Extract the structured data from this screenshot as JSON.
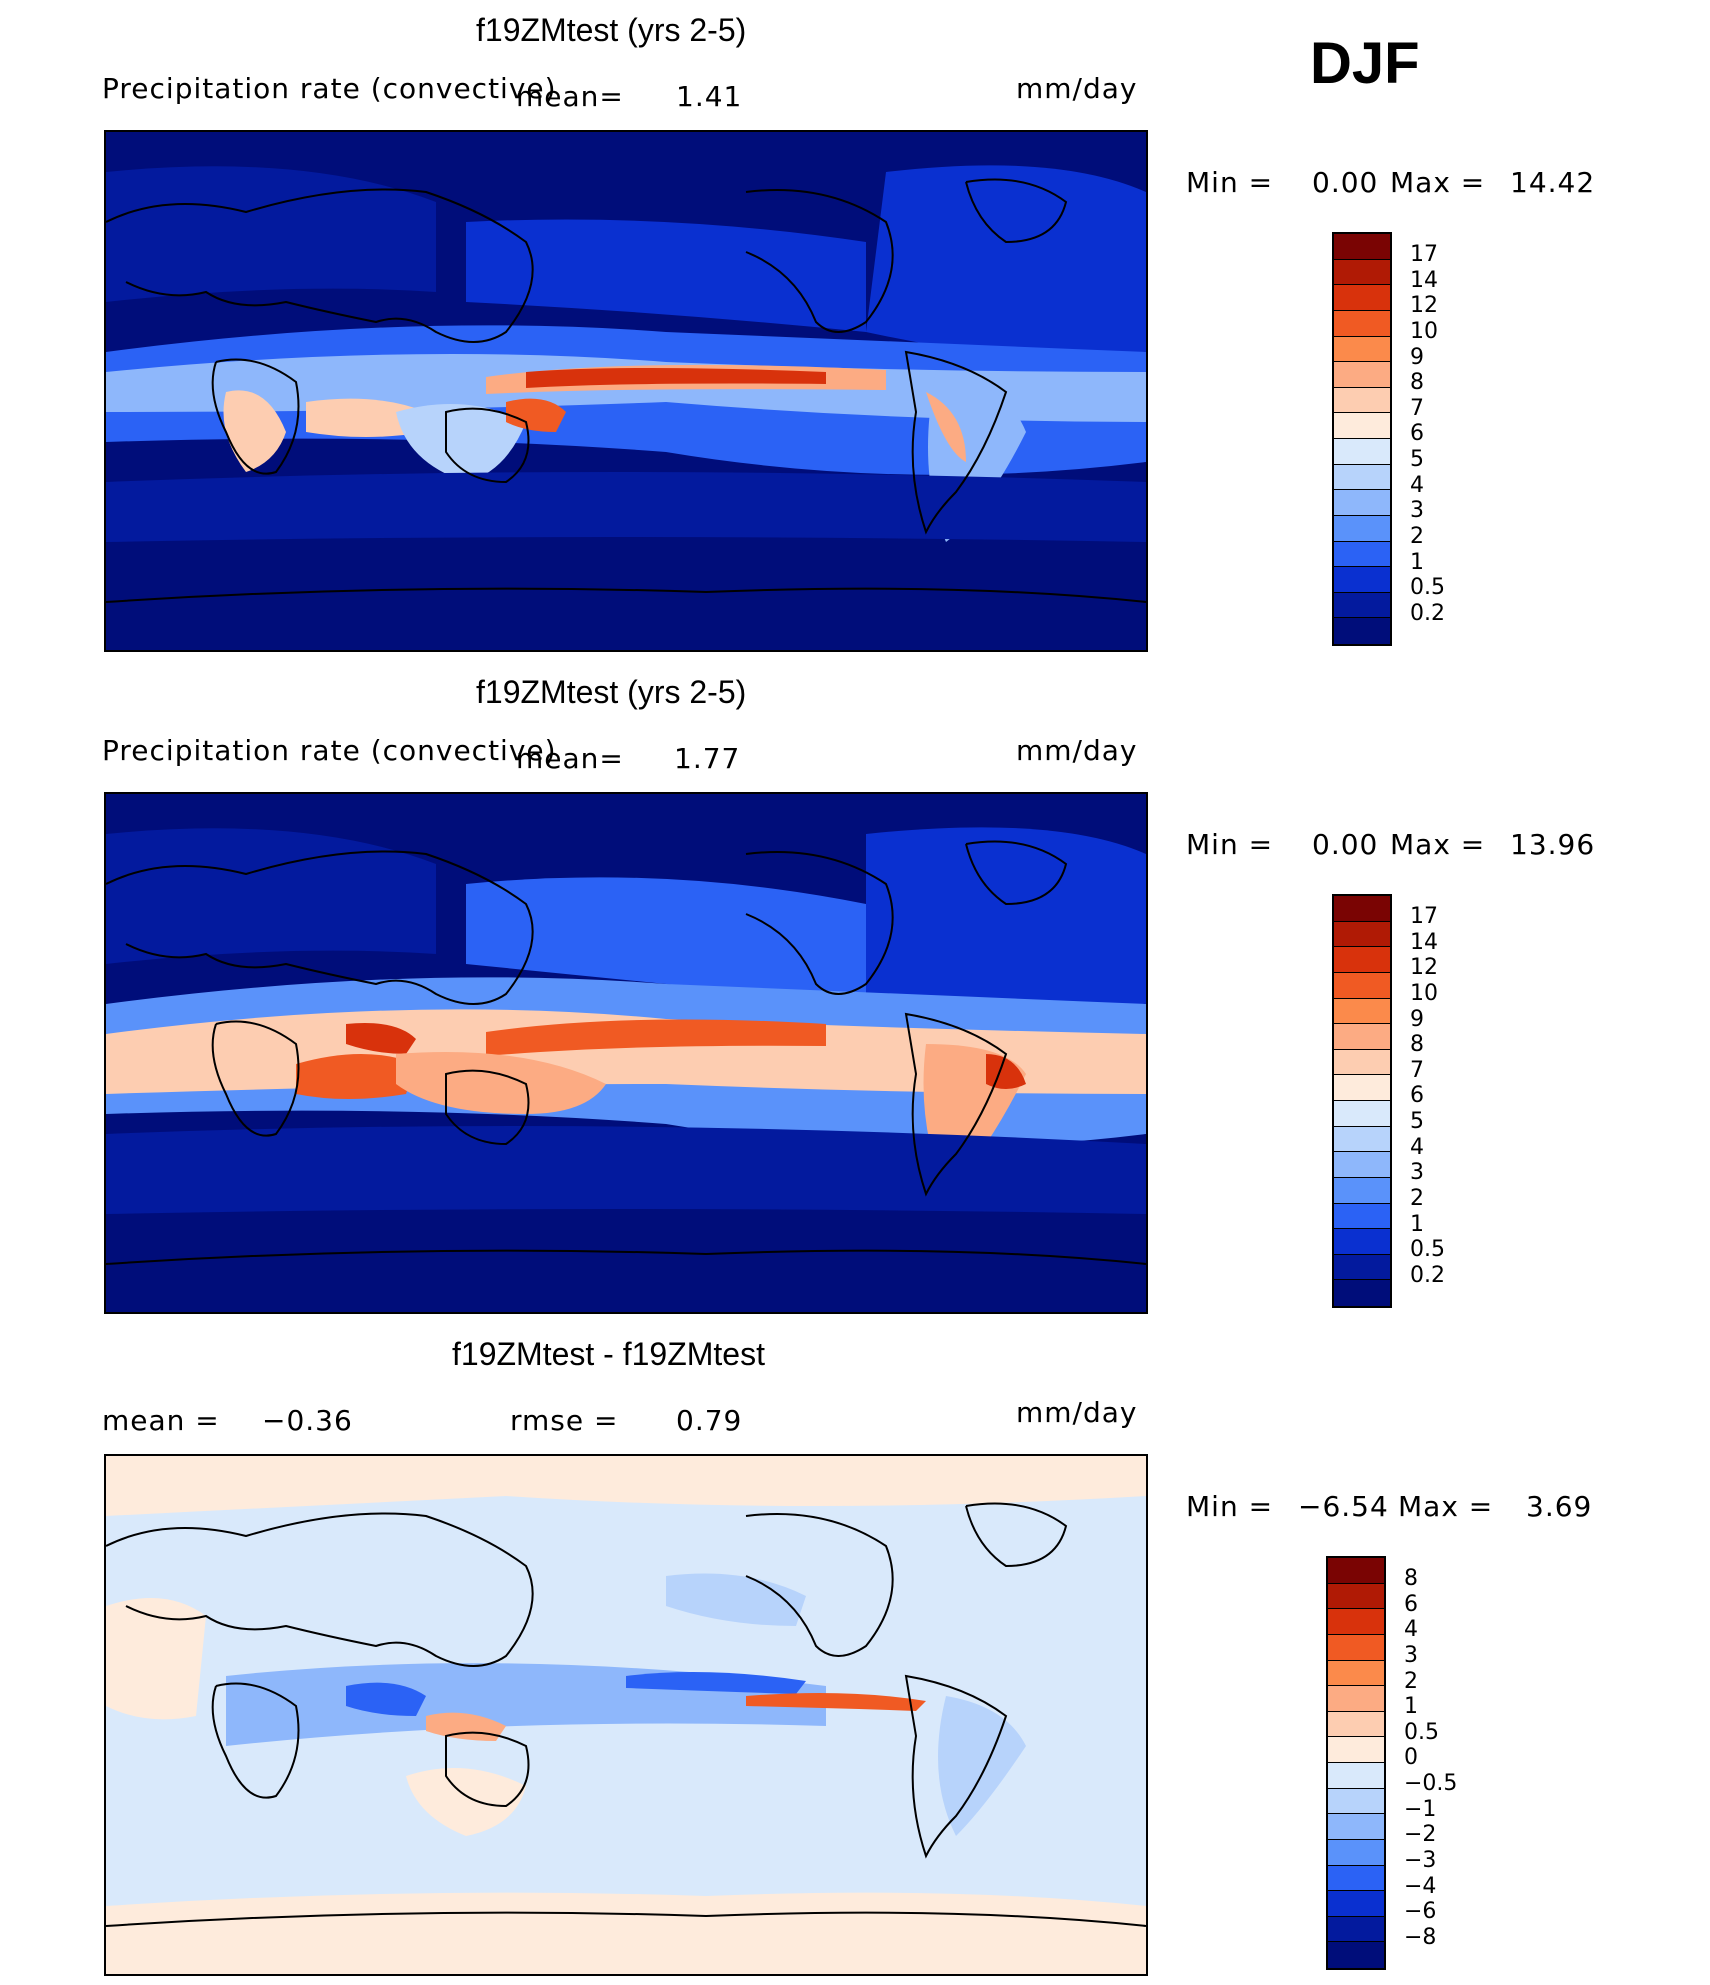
{
  "season": "DJF",
  "panels": [
    {
      "title": "f19ZMtest (yrs 2-5)",
      "variable": "Precipitation rate (convective)",
      "mean_label": "mean=",
      "mean": "1.41",
      "units": "mm/day",
      "min_label": "Min =",
      "min": "0.00",
      "max_label": "Max =",
      "max": "14.42",
      "colorbar_labels": [
        "17",
        "14",
        "12",
        "10",
        "9",
        "8",
        "7",
        "6",
        "5",
        "4",
        "3",
        "2",
        "1",
        "0.5",
        "0.2"
      ]
    },
    {
      "title": "f19ZMtest (yrs 2-5)",
      "variable": "Precipitation rate (convective)",
      "mean_label": "mean=",
      "mean": "1.77",
      "units": "mm/day",
      "min_label": "Min =",
      "min": "0.00",
      "max_label": "Max =",
      "max": "13.96",
      "colorbar_labels": [
        "17",
        "14",
        "12",
        "10",
        "9",
        "8",
        "7",
        "6",
        "5",
        "4",
        "3",
        "2",
        "1",
        "0.5",
        "0.2"
      ]
    },
    {
      "title": "f19ZMtest - f19ZMtest",
      "mean_label": "mean =",
      "mean": "−0.36",
      "rmse_label": "rmse =",
      "rmse": "0.79",
      "units": "mm/day",
      "min_label": "Min =",
      "min": "−6.54",
      "max_label": "Max =",
      "max": "3.69",
      "colorbar_labels": [
        "8",
        "6",
        "4",
        "3",
        "2",
        "1",
        "0.5",
        "0",
        "−0.5",
        "−1",
        "−2",
        "−3",
        "−4",
        "−6",
        "−8"
      ]
    }
  ],
  "colors": {
    "precip_scale": [
      "#7a0403",
      "#b01a05",
      "#d8320c",
      "#f05a23",
      "#fb8a4b",
      "#fcab83",
      "#fdcdb1",
      "#feebdc",
      "#d9e9fb",
      "#b7d3fb",
      "#8eb7fb",
      "#5a92fa",
      "#2b62f5",
      "#0a30d0",
      "#031a9e",
      "#000d7a"
    ],
    "diff_scale": [
      "#7a0403",
      "#b01a05",
      "#d8320c",
      "#f05a23",
      "#fb8a4b",
      "#fcab83",
      "#fdcdb1",
      "#feebdc",
      "#d9e9fb",
      "#b7d3fb",
      "#8eb7fb",
      "#5a92fa",
      "#2b62f5",
      "#0a30d0",
      "#031a9e",
      "#000d7a"
    ]
  },
  "chart_data": [
    {
      "type": "heatmap",
      "title": "f19ZMtest (yrs 2-5)",
      "subtitle": "Precipitation rate (convective)",
      "units": "mm/day",
      "mean": 1.41,
      "min": 0.0,
      "max": 14.42,
      "contour_levels": [
        0.2,
        0.5,
        1,
        2,
        3,
        4,
        5,
        6,
        7,
        8,
        9,
        10,
        12,
        14,
        17
      ]
    },
    {
      "type": "heatmap",
      "title": "f19ZMtest (yrs 2-5)",
      "subtitle": "Precipitation rate (convective)",
      "units": "mm/day",
      "mean": 1.77,
      "min": 0.0,
      "max": 13.96,
      "contour_levels": [
        0.2,
        0.5,
        1,
        2,
        3,
        4,
        5,
        6,
        7,
        8,
        9,
        10,
        12,
        14,
        17
      ]
    },
    {
      "type": "heatmap",
      "title": "f19ZMtest - f19ZMtest",
      "units": "mm/day",
      "mean": -0.36,
      "rmse": 0.79,
      "min": -6.54,
      "max": 3.69,
      "contour_levels": [
        -8,
        -6,
        -4,
        -3,
        -2,
        -1,
        -0.5,
        0,
        0.5,
        1,
        2,
        3,
        4,
        6,
        8
      ]
    }
  ]
}
